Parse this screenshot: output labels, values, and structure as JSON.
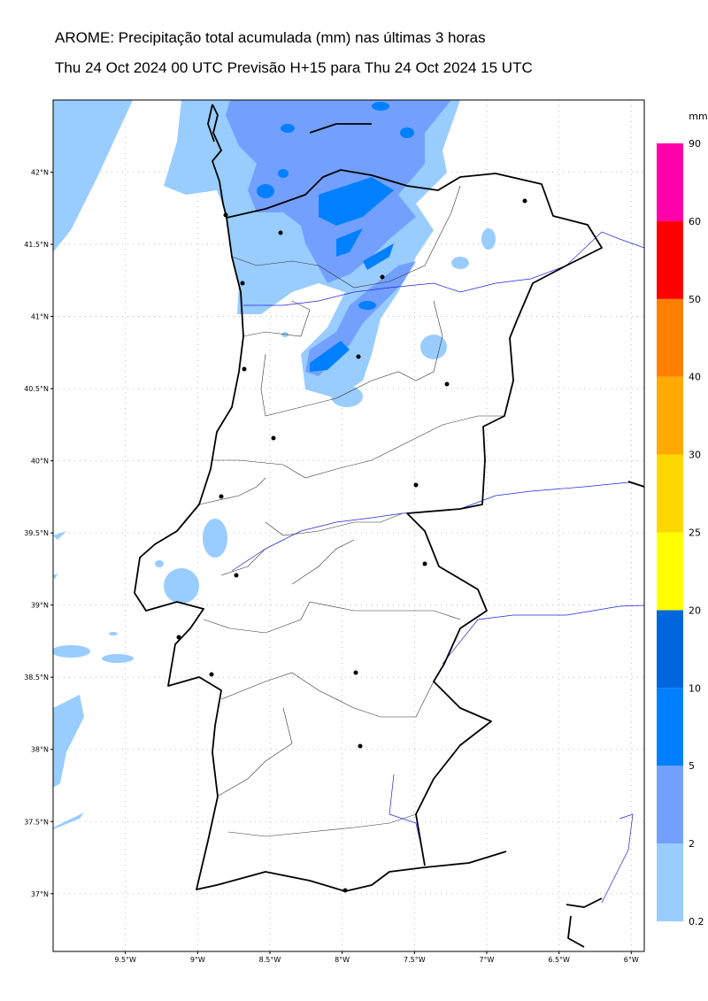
{
  "header": {
    "title": "AROME: Precipitação total acumulada (mm) nas últimas 3 horas",
    "subtitle": "Thu 24 Oct 2024 00 UTC Previsão H+15 para Thu 24 Oct 2024 15 UTC"
  },
  "map": {
    "xlim": [
      -10,
      -5.91
    ],
    "ylim": [
      36.6,
      42.5
    ],
    "yticks": [
      {
        "value": 42,
        "label": "42°N"
      },
      {
        "value": 41.5,
        "label": "41.5°N"
      },
      {
        "value": 41,
        "label": "41°N"
      },
      {
        "value": 40.5,
        "label": "40.5°N"
      },
      {
        "value": 40,
        "label": "40°N"
      },
      {
        "value": 39.5,
        "label": "39.5°N"
      },
      {
        "value": 39,
        "label": "39°N"
      },
      {
        "value": 38.5,
        "label": "38.5°N"
      },
      {
        "value": 38,
        "label": "38°N"
      },
      {
        "value": 37.5,
        "label": "37.5°N"
      },
      {
        "value": 37,
        "label": "37°N"
      }
    ],
    "xticks": [
      {
        "value": -9.5,
        "label": "9.5°W"
      },
      {
        "value": -9,
        "label": "9°W"
      },
      {
        "value": -8.5,
        "label": "8.5°W"
      },
      {
        "value": -8,
        "label": "8°W"
      },
      {
        "value": -7.5,
        "label": "7.5°W"
      },
      {
        "value": -7,
        "label": "7°W"
      },
      {
        "value": -6.5,
        "label": "6.5°W"
      },
      {
        "value": -6,
        "label": "6°W"
      }
    ],
    "grid": true
  },
  "colorbar": {
    "unit": "mm",
    "levels": [
      0.2,
      2,
      5,
      10,
      20,
      25,
      30,
      40,
      50,
      60,
      90
    ],
    "colors": [
      "#99ccff",
      "#73a0ff",
      "#0080ff",
      "#0066dd",
      "#ffff00",
      "#ffd700",
      "#ffaa00",
      "#ff8000",
      "#ff0000",
      "#ff00aa"
    ]
  }
}
